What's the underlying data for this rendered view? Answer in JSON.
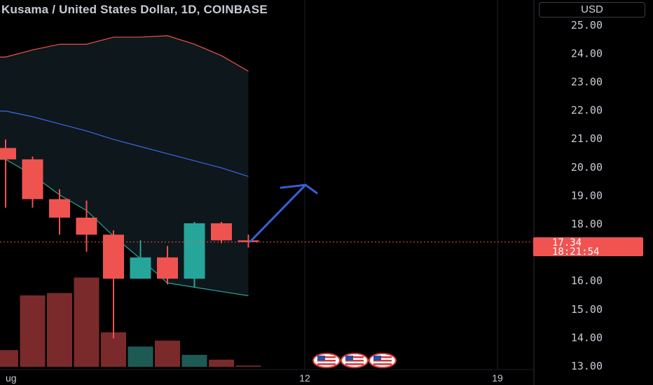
{
  "header": {
    "title": "Kusama / United States Dollar, 1D, COINBASE"
  },
  "currency_button": {
    "label": "USD"
  },
  "last_price": {
    "price": "17.34",
    "countdown": "18:21:54"
  },
  "colors": {
    "up": "#26a69a",
    "down": "#ef5350",
    "upper_band": "#ef5350",
    "basis": "#3d68e6",
    "lower_band": "#26a69a",
    "arrow": "#3a5fd6",
    "grid": "#1e222d"
  },
  "events": {
    "icon": "us-flag-icon",
    "count": 3
  },
  "chart_data": {
    "type": "candlestick",
    "title": "Kusama / United States Dollar, 1D, COINBASE",
    "y_axis": {
      "side": "right",
      "ylim": [
        13.0,
        25.5
      ],
      "ticks": [
        "25.00",
        "24.00",
        "23.00",
        "22.00",
        "21.00",
        "20.00",
        "19.00",
        "18.00",
        "16.00",
        "15.00",
        "14.00",
        "13.00"
      ]
    },
    "x_axis": {
      "ticks": [
        "ug",
        "12",
        "19"
      ]
    },
    "candles": [
      {
        "o": 20.65,
        "h": 20.95,
        "l": 18.55,
        "c": 20.25
      },
      {
        "o": 20.25,
        "h": 20.35,
        "l": 18.55,
        "c": 18.85
      },
      {
        "o": 18.85,
        "h": 19.2,
        "l": 17.6,
        "c": 18.2
      },
      {
        "o": 18.2,
        "h": 18.8,
        "l": 17.0,
        "c": 17.6
      },
      {
        "o": 17.6,
        "h": 17.75,
        "l": 13.95,
        "c": 16.05
      },
      {
        "o": 16.05,
        "h": 17.4,
        "l": 16.05,
        "c": 16.8
      },
      {
        "o": 16.8,
        "h": 17.2,
        "l": 15.85,
        "c": 16.05
      },
      {
        "o": 16.05,
        "h": 18.05,
        "l": 15.75,
        "c": 18.0
      },
      {
        "o": 18.0,
        "h": 18.05,
        "l": 17.3,
        "c": 17.4
      },
      {
        "o": 17.4,
        "h": 17.6,
        "l": 17.15,
        "c": 17.34
      }
    ],
    "volume": [
      0.14,
      0.6,
      0.62,
      0.75,
      0.29,
      0.17,
      0.22,
      0.1,
      0.06,
      0.01
    ],
    "volume_up": [
      false,
      false,
      false,
      false,
      false,
      true,
      false,
      true,
      false,
      false
    ],
    "bands": {
      "upper": [
        23.85,
        24.1,
        24.3,
        24.3,
        24.55,
        24.55,
        24.6,
        24.3,
        23.9,
        23.35
      ],
      "basis": [
        21.95,
        21.75,
        21.5,
        21.25,
        20.95,
        20.7,
        20.45,
        20.2,
        19.95,
        19.65
      ],
      "lower": [
        20.25,
        19.7,
        19.0,
        18.45,
        17.55,
        16.75,
        15.9,
        15.75,
        15.6,
        15.45
      ]
    },
    "projection": {
      "from": 17.34,
      "to": 19.35,
      "tail": 19.05
    },
    "grid": true
  }
}
